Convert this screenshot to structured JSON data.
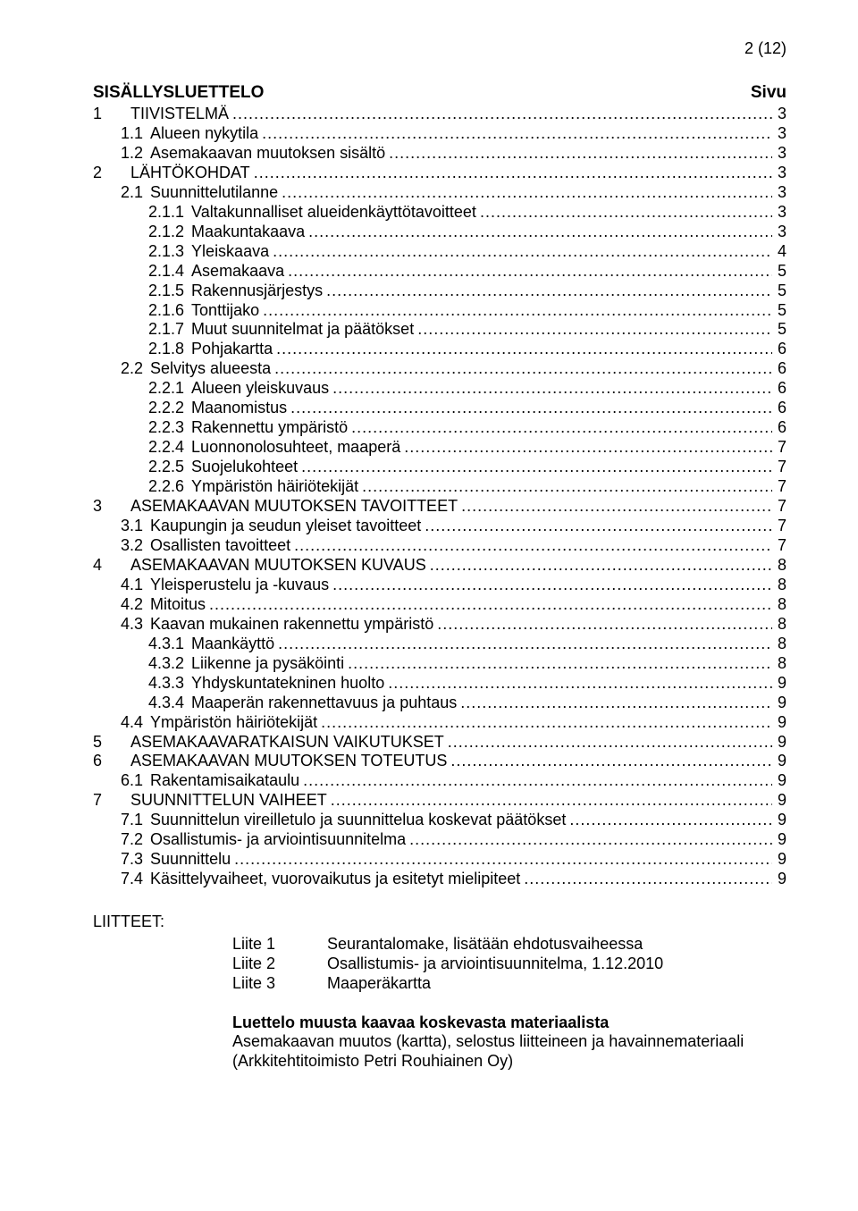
{
  "pageNumber": "2 (12)",
  "title": "SISÄLLYSLUETTELO",
  "pageCol": "Sivu",
  "leader": "............................................................................................................................................................................................................",
  "entries": [
    {
      "level": 0,
      "num": "1",
      "text": "TIIVISTELMÄ",
      "page": "3"
    },
    {
      "level": 1,
      "num": "1.1",
      "text": "Alueen nykytila",
      "page": "3"
    },
    {
      "level": 1,
      "num": "1.2",
      "text": "Asemakaavan muutoksen sisältö",
      "page": "3"
    },
    {
      "level": 0,
      "num": "2",
      "text": "LÄHTÖKOHDAT",
      "page": "3"
    },
    {
      "level": 1,
      "num": "2.1",
      "text": "Suunnittelutilanne",
      "page": "3"
    },
    {
      "level": 2,
      "num": "2.1.1",
      "text": "Valtakunnalliset alueidenkäyttötavoitteet",
      "page": "3"
    },
    {
      "level": 2,
      "num": "2.1.2",
      "text": "Maakuntakaava",
      "page": "3"
    },
    {
      "level": 2,
      "num": "2.1.3",
      "text": "Yleiskaava",
      "page": "4"
    },
    {
      "level": 2,
      "num": "2.1.4",
      "text": "Asemakaava",
      "page": "5"
    },
    {
      "level": 2,
      "num": "2.1.5",
      "text": "Rakennusjärjestys",
      "page": "5"
    },
    {
      "level": 2,
      "num": "2.1.6",
      "text": "Tonttijako",
      "page": "5"
    },
    {
      "level": 2,
      "num": "2.1.7",
      "text": "Muut suunnitelmat ja päätökset",
      "page": "5"
    },
    {
      "level": 2,
      "num": "2.1.8",
      "text": "Pohjakartta",
      "page": "6"
    },
    {
      "level": 1,
      "num": "2.2",
      "text": "Selvitys alueesta",
      "page": "6"
    },
    {
      "level": 2,
      "num": "2.2.1",
      "text": "Alueen yleiskuvaus",
      "page": "6"
    },
    {
      "level": 2,
      "num": "2.2.2",
      "text": "Maanomistus",
      "page": "6"
    },
    {
      "level": 2,
      "num": "2.2.3",
      "text": "Rakennettu ympäristö",
      "page": "6"
    },
    {
      "level": 2,
      "num": "2.2.4",
      "text": "Luonnonolosuhteet, maaperä",
      "page": "7"
    },
    {
      "level": 2,
      "num": "2.2.5",
      "text": "Suojelukohteet",
      "page": "7"
    },
    {
      "level": 2,
      "num": "2.2.6",
      "text": "Ympäristön häiriötekijät",
      "page": "7"
    },
    {
      "level": 0,
      "num": "3",
      "text": "ASEMAKAAVAN MUUTOKSEN TAVOITTEET",
      "page": "7"
    },
    {
      "level": 1,
      "num": "3.1",
      "text": "Kaupungin ja seudun yleiset tavoitteet",
      "page": "7"
    },
    {
      "level": 1,
      "num": "3.2",
      "text": "Osallisten tavoitteet",
      "page": "7"
    },
    {
      "level": 0,
      "num": "4",
      "text": "ASEMAKAAVAN MUUTOKSEN KUVAUS",
      "page": "8"
    },
    {
      "level": 1,
      "num": "4.1",
      "text": "Yleisperustelu ja -kuvaus",
      "page": "8"
    },
    {
      "level": 1,
      "num": "4.2",
      "text": "Mitoitus",
      "page": "8"
    },
    {
      "level": 1,
      "num": "4.3",
      "text": "Kaavan mukainen rakennettu ympäristö",
      "page": "8"
    },
    {
      "level": 2,
      "num": "4.3.1",
      "text": "Maankäyttö",
      "page": "8"
    },
    {
      "level": 2,
      "num": "4.3.2",
      "text": "Liikenne ja pysäköinti",
      "page": "8"
    },
    {
      "level": 2,
      "num": "4.3.3",
      "text": "Yhdyskuntatekninen huolto",
      "page": "9"
    },
    {
      "level": 2,
      "num": "4.3.4",
      "text": "Maaperän rakennettavuus ja puhtaus",
      "page": "9"
    },
    {
      "level": 1,
      "num": "4.4",
      "text": "Ympäristön häiriötekijät",
      "page": "9"
    },
    {
      "level": 0,
      "num": "5",
      "text": "ASEMAKAAVARATKAISUN VAIKUTUKSET",
      "page": "9"
    },
    {
      "level": 0,
      "num": "6",
      "text": "ASEMAKAAVAN MUUTOKSEN TOTEUTUS",
      "page": "9"
    },
    {
      "level": 1,
      "num": "6.1",
      "text": "Rakentamisaikataulu",
      "page": "9"
    },
    {
      "level": 0,
      "num": "7",
      "text": "SUUNNITTELUN VAIHEET",
      "page": "9"
    },
    {
      "level": 1,
      "num": "7.1",
      "text": "Suunnittelun vireilletulo ja suunnittelua koskevat päätökset",
      "page": "9"
    },
    {
      "level": 1,
      "num": "7.2",
      "text": "Osallistumis- ja arviointisuunnitelma",
      "page": "9"
    },
    {
      "level": 1,
      "num": "7.3",
      "text": "Suunnittelu",
      "page": "9"
    },
    {
      "level": 1,
      "num": "7.4",
      "text": "Käsittelyvaiheet, vuorovaikutus ja esitetyt mielipiteet",
      "page": "9"
    }
  ],
  "appendixHeading": "LIITTEET:",
  "appendices": [
    {
      "key": "Liite 1",
      "text": "Seurantalomake, lisätään ehdotusvaiheessa"
    },
    {
      "key": "Liite 2",
      "text": "Osallistumis- ja arviointisuunnitelma, 1.12.2010"
    },
    {
      "key": "Liite 3",
      "text": "Maaperäkartta"
    }
  ],
  "materialHeading": "Luettelo muusta kaavaa koskevasta materiaalista",
  "materialText": "Asemakaavan muutos (kartta), selostus liitteineen ja havainnemateriaali (Arkkitehtitoimisto Petri Rouhiainen Oy)"
}
